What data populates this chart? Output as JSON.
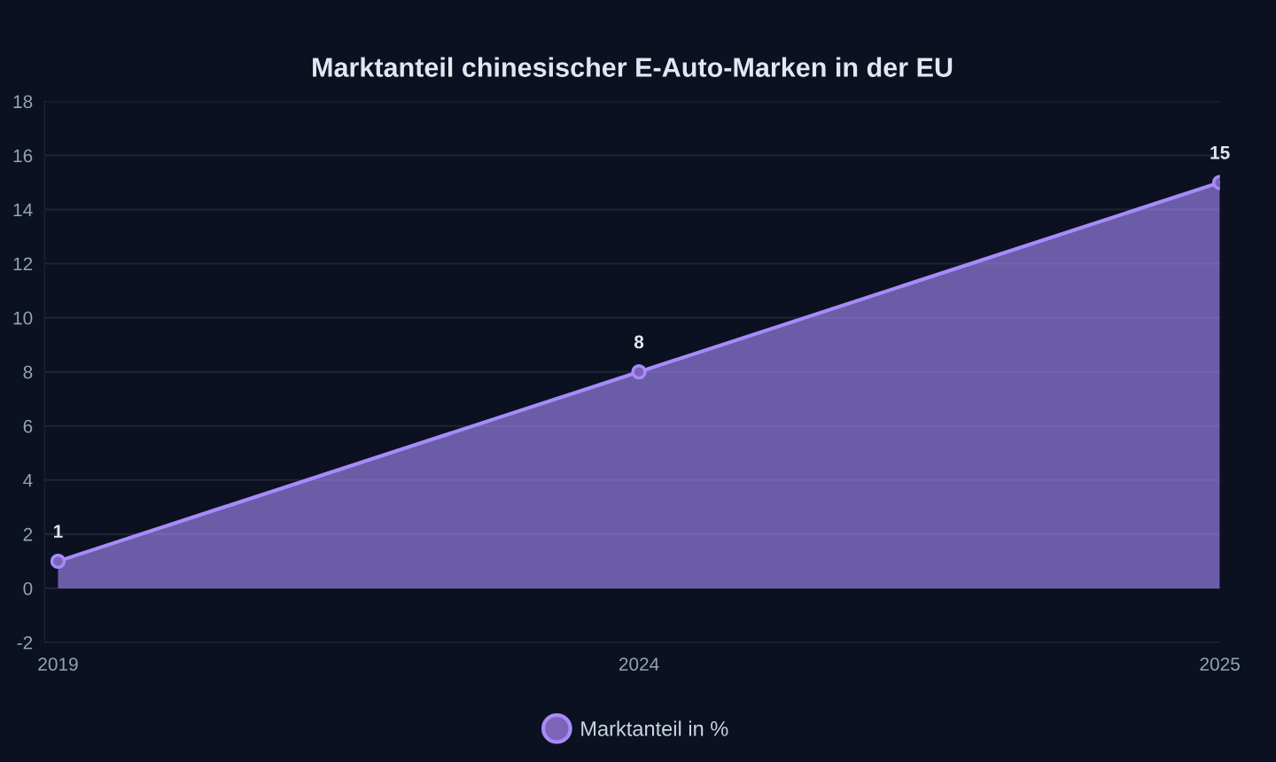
{
  "chart_data": {
    "type": "area",
    "title": "Marktanteil chinesischer E-Auto-Marken in der EU",
    "categories": [
      "2019",
      "2024",
      "2025"
    ],
    "series": [
      {
        "name": "Marktanteil in %",
        "color": "#a78bfa",
        "values": [
          1,
          8,
          15
        ]
      }
    ],
    "ylim": [
      -2,
      18
    ],
    "yticks": [
      {
        "value": -2,
        "label": "-2"
      },
      0,
      2,
      4,
      6,
      8,
      10,
      12,
      14,
      16,
      18
    ],
    "grid": "y",
    "legend": "bottom",
    "marker": "circle",
    "line_style": "solid",
    "data_labels": true
  }
}
